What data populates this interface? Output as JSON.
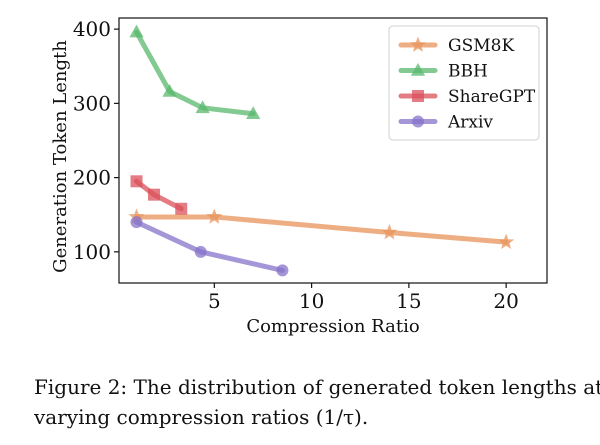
{
  "chart_data": {
    "type": "line",
    "xlabel": "Compression Ratio",
    "ylabel": "Generation Token Length",
    "xlim": [
      0.1,
      22.1
    ],
    "ylim": [
      58,
      415
    ],
    "xticks": [
      "5",
      "10",
      "15",
      "20"
    ],
    "yticks": [
      "100",
      "200",
      "300",
      "400"
    ],
    "grid": false,
    "legend_position": "top-right",
    "series": [
      {
        "name": "GSM8K",
        "color": "#e8935a",
        "marker": "star",
        "x": [
          1.0,
          5.0,
          14.0,
          20.0
        ],
        "y": [
          147,
          147,
          126,
          113
        ]
      },
      {
        "name": "BBH",
        "color": "#59b86e",
        "marker": "triangle",
        "x": [
          1.0,
          2.7,
          4.4,
          7.0
        ],
        "y": [
          396,
          316,
          294,
          286
        ]
      },
      {
        "name": "ShareGPT",
        "color": "#d9505a",
        "marker": "square",
        "x": [
          1.0,
          1.9,
          3.3
        ],
        "y": [
          195,
          177,
          158
        ]
      },
      {
        "name": "Arxiv",
        "color": "#8673c9",
        "marker": "circle",
        "x": [
          1.0,
          4.3,
          8.5
        ],
        "y": [
          140,
          100,
          75
        ]
      }
    ]
  },
  "caption": {
    "line1": "Figure 2: The distribution of generated token lengths at",
    "line2": "varying compression ratios (1/τ)."
  }
}
